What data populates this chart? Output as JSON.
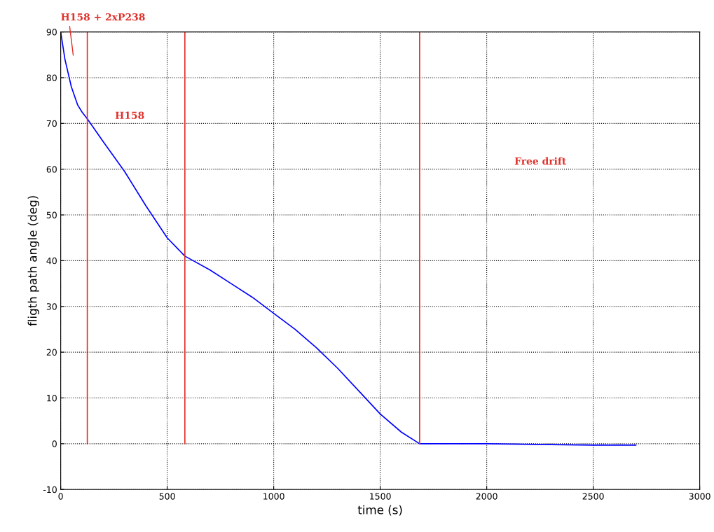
{
  "chart_data": {
    "type": "line",
    "xlabel": "time (s)",
    "ylabel": "fligth path angle (deg)",
    "xlim": [
      0,
      3000
    ],
    "ylim": [
      -10,
      90
    ],
    "xticks": [
      0,
      500,
      1000,
      1500,
      2000,
      2500,
      3000
    ],
    "yticks": [
      -10,
      0,
      10,
      20,
      30,
      40,
      50,
      60,
      70,
      80,
      90
    ],
    "grid": true,
    "line_style": "solid",
    "legend": false,
    "series": [
      {
        "color": "#0000ff",
        "x": [
          0,
          20,
          50,
          80,
          100,
          125,
          200,
          300,
          400,
          500,
          583,
          700,
          800,
          900,
          1000,
          1100,
          1200,
          1300,
          1400,
          1500,
          1600,
          1685,
          2000,
          2300,
          2500,
          2700
        ],
        "values": [
          90,
          84,
          78,
          74,
          72.5,
          71,
          66,
          59.5,
          52,
          45,
          41,
          38,
          35,
          32,
          28.5,
          25,
          21,
          16.5,
          11.5,
          6.5,
          2.5,
          0,
          0,
          -0.2,
          -0.3,
          -0.3
        ]
      },
      {
        "color": "#e0302a",
        "x": [
          125,
          125
        ],
        "values": [
          0,
          90
        ]
      },
      {
        "color": "#e0302a",
        "x": [
          583,
          583
        ],
        "values": [
          0,
          90
        ]
      },
      {
        "color": "#e0302a",
        "x": [
          1685,
          1685
        ],
        "values": [
          0,
          90
        ]
      }
    ],
    "annotations": [
      "H158 + 2xP238",
      "H158",
      "Free drift"
    ]
  }
}
